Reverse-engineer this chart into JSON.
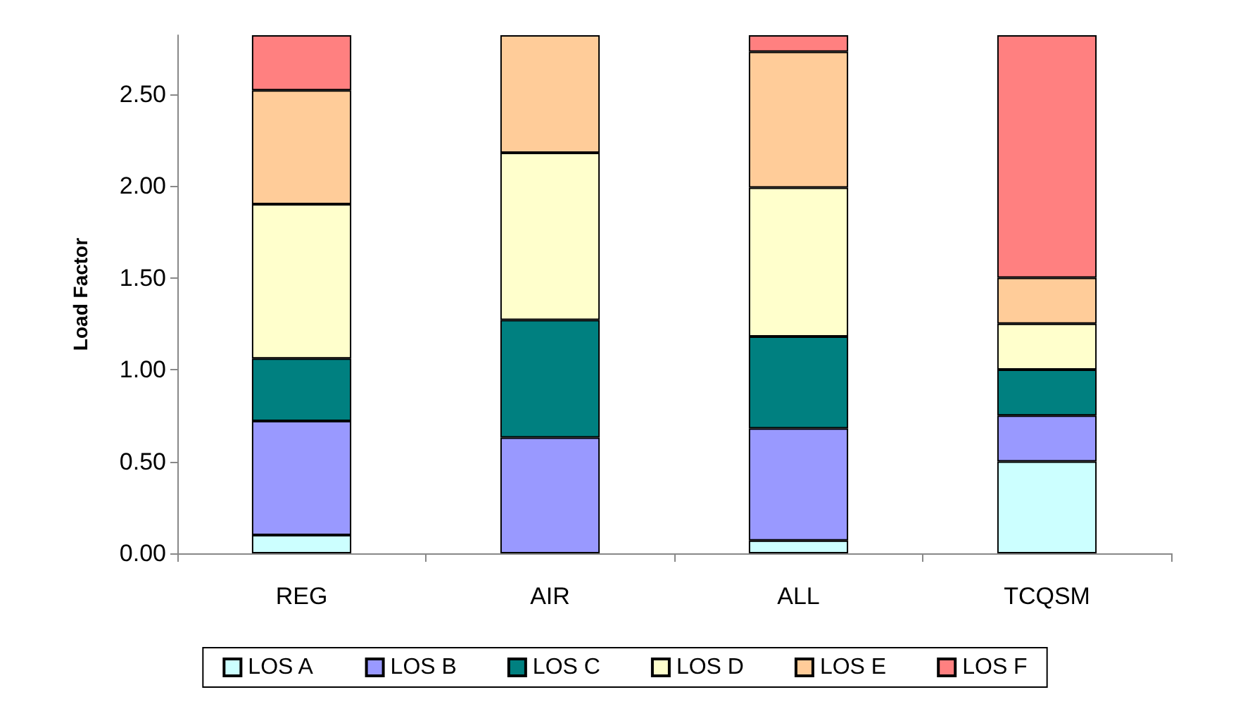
{
  "chart_data": {
    "type": "bar",
    "stacked": true,
    "ylabel": "Load Factor",
    "categories": [
      "REG",
      "AIR",
      "ALL",
      "TCQSM"
    ],
    "ylim": [
      0,
      2.82
    ],
    "yticks": [
      {
        "value": 0,
        "label": "0.00"
      },
      {
        "value": 0.5,
        "label": "0.50"
      },
      {
        "value": 1,
        "label": "1.00"
      },
      {
        "value": 1.5,
        "label": "1.50"
      },
      {
        "value": 2,
        "label": "2.00"
      },
      {
        "value": 2.5,
        "label": "2.50"
      }
    ],
    "grid": false,
    "legend": "bottom",
    "series": [
      {
        "name": "LOS A",
        "color": "#ccffff",
        "values": [
          0.1,
          null,
          0.07,
          0.5
        ]
      },
      {
        "name": "LOS B",
        "color": "#9999ff",
        "values": [
          0.62,
          0.63,
          0.61,
          0.25
        ]
      },
      {
        "name": "LOS C",
        "color": "#008080",
        "values": [
          0.34,
          0.64,
          0.5,
          0.25
        ]
      },
      {
        "name": "LOS D",
        "color": "#ffffcc",
        "values": [
          0.84,
          0.91,
          0.81,
          0.25
        ]
      },
      {
        "name": "LOS E",
        "color": "#ffcc99",
        "values": [
          0.62,
          0.64,
          0.74,
          0.25
        ]
      },
      {
        "name": "LOS F",
        "color": "#ff8080",
        "values": [
          0.3,
          null,
          0.09,
          1.32
        ]
      }
    ]
  }
}
